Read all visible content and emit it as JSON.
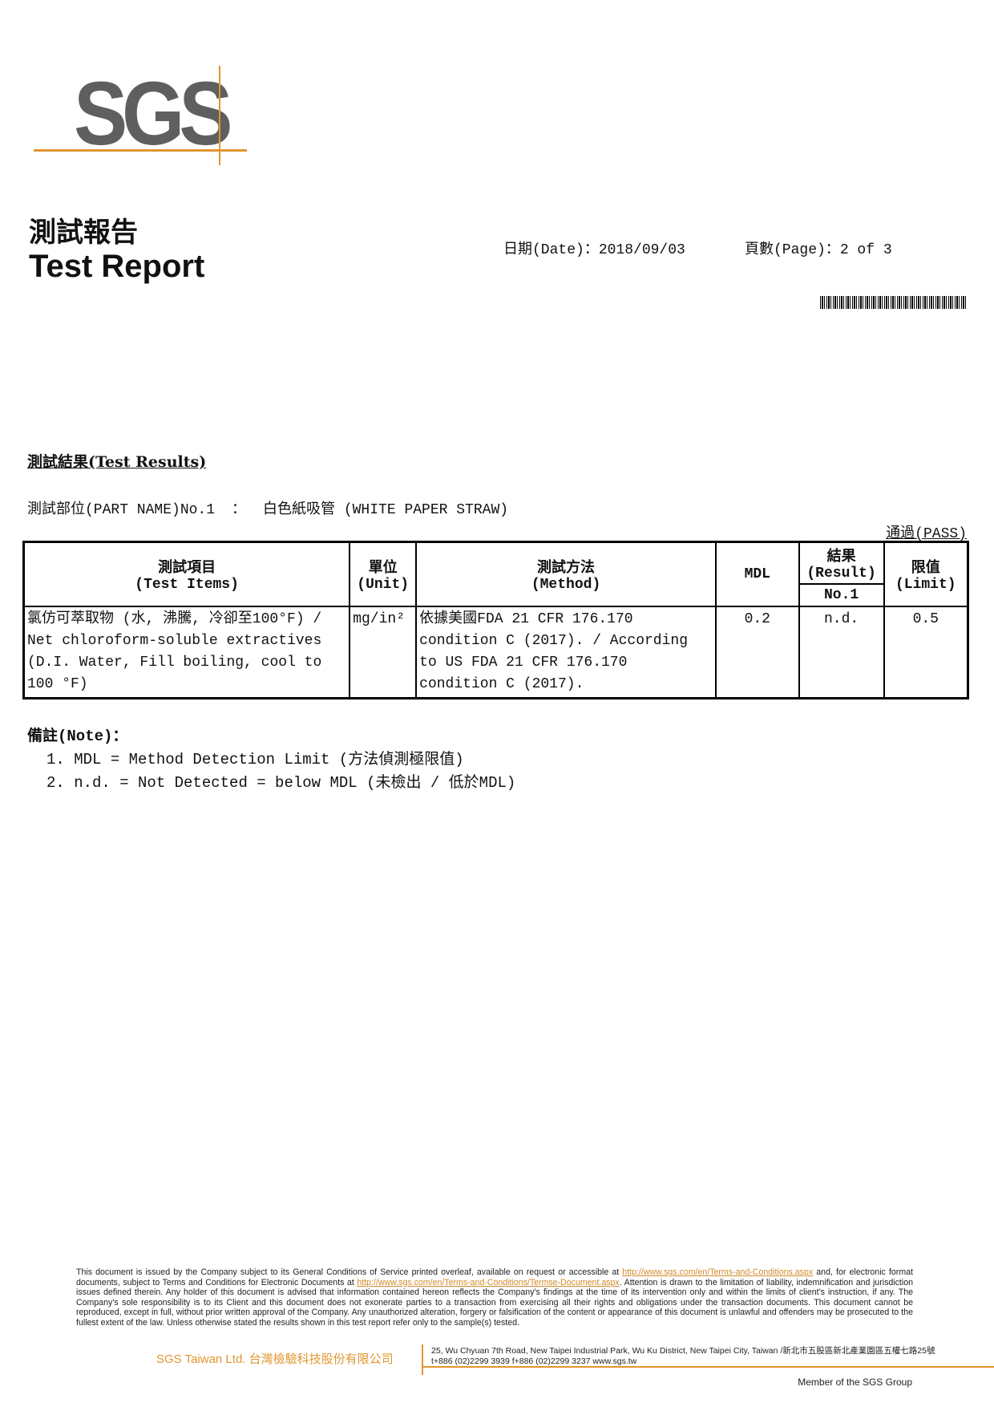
{
  "logo": {
    "text": "SGS",
    "accent": "#e0962f",
    "text_color": "#5f5f5f"
  },
  "header": {
    "title_zh": "測試報告",
    "title_en": "Test Report",
    "date_label": "日期(Date)：",
    "date": "2018/09/03",
    "page_label": "頁數(Page)：",
    "page": "2 of 3"
  },
  "results": {
    "heading": "測試結果(Test Results)",
    "part_label": "測試部位(PART NAME)No.1",
    "part_sep": "：",
    "part_name": "白色紙吸管 (WHITE PAPER STRAW)",
    "verdict": "通過(PASS)"
  },
  "table": {
    "headers": {
      "item_zh": "測試項目",
      "item_en": "(Test Items)",
      "unit_zh": "單位",
      "unit_en": "(Unit)",
      "method_zh": "測試方法",
      "method_en": "(Method)",
      "mdl": "MDL",
      "result_zh": "結果",
      "result_en": "(Result)",
      "result_sub": "No.1",
      "limit_zh": "限值",
      "limit_en": "(Limit)"
    },
    "rows": [
      {
        "item": "氯仿可萃取物 (水, 沸騰, 冷卻至100°F) / Net chloroform-soluble extractives (D.I. Water, Fill boiling, cool to 100 °F)",
        "unit": "mg/in²",
        "method": "依據美國FDA 21 CFR 176.170 condition C (2017). / According to US FDA 21 CFR 176.170 condition C (2017).",
        "mdl": "0.2",
        "result": "n.d.",
        "limit": "0.5"
      }
    ]
  },
  "notes": {
    "heading": "備註(Note)：",
    "items": [
      "1. MDL = Method Detection Limit (方法偵測極限值)",
      "2. n.d. = Not Detected =  below MDL (未檢出 / 低於MDL)"
    ]
  },
  "footer": {
    "disclaimer_1": "This document is issued by the Company subject to its General Conditions of Service printed overleaf, available on request or accessible at ",
    "link_1": "http://www.sgs.com/en/Terms-and-Conditions.aspx",
    "disclaimer_2": " and, for electronic format documents, subject to Terms and Conditions for Electronic Documents at ",
    "link_2": "http://www.sgs.com/en/Terms-and-Conditions/Termse-Document.aspx",
    "disclaimer_3": ". Attention is drawn to the limitation of liability, indemnification and jurisdiction issues defined therein. Any holder of this document is advised that information contained hereon reflects the Company's findings at the time of its intervention only and within the limits of client's instruction, if any. The Company's sole responsibility is to its Client and this document does not exonerate parties to a transaction from exercising all their rights and obligations under the transaction documents. This document cannot be reproduced, except in full, without prior written approval of the Company. Any unauthorized alteration, forgery or falsification of the content or appearance of this document is unlawful and offenders may be prosecuted to the fullest extent of the law. Unless otherwise stated the results shown in this test report refer only to the sample(s) tested.",
    "company": "SGS Taiwan Ltd. 台灣檢驗科技股份有限公司",
    "address": "25, Wu Chyuan 7th Road, New Taipei Industrial Park, Wu Ku District, New Taipei City, Taiwan /新北市五股區新北產業園區五權七路25號",
    "contact": "t+886 (02)2299 3939   f+886 (02)2299 3237     www.sgs.tw",
    "member": "Member of the SGS Group"
  }
}
